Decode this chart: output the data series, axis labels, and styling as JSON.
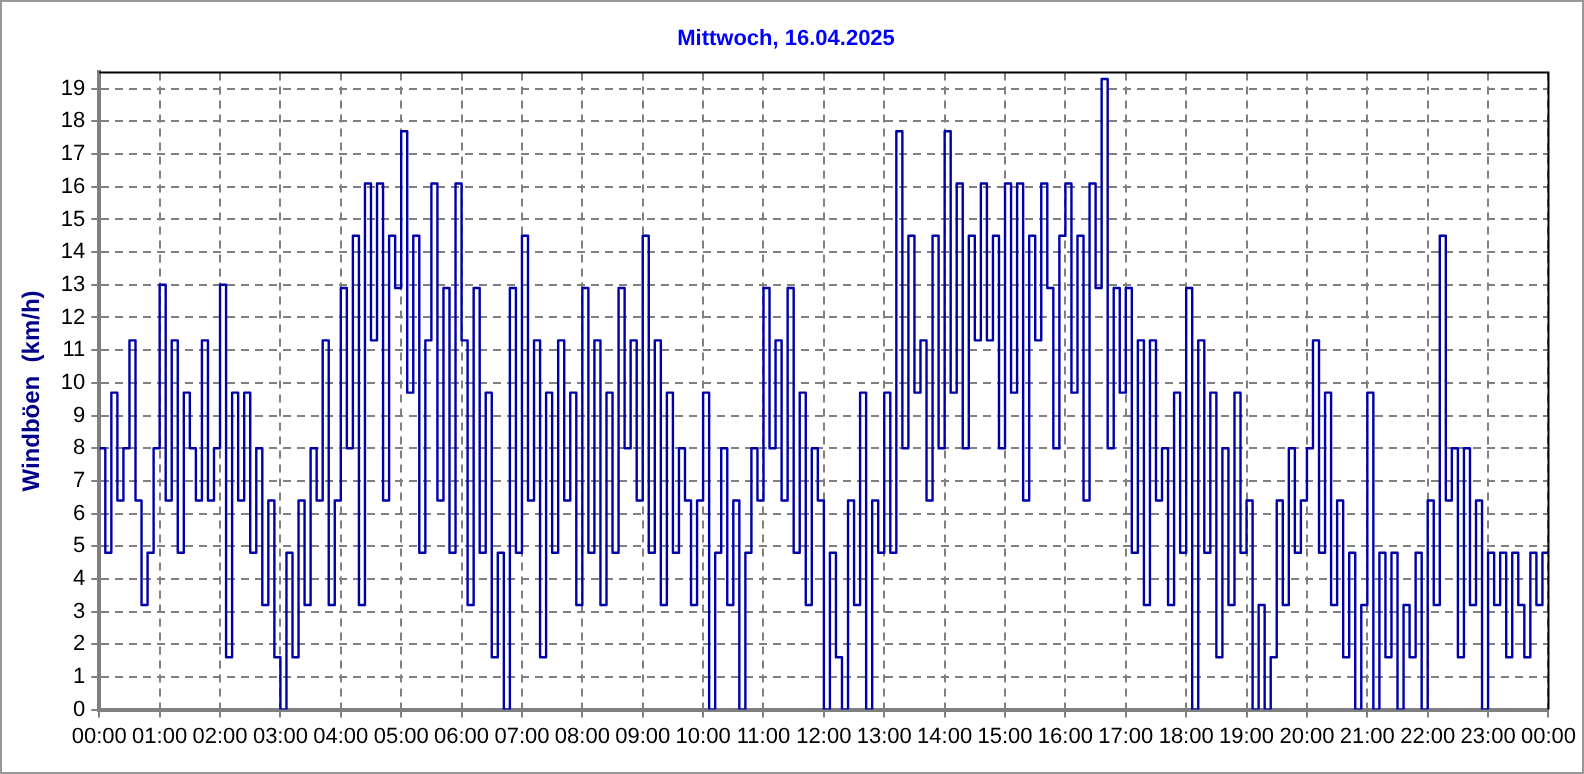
{
  "chart_data": {
    "type": "step",
    "title": "Mittwoch, 16.04.2025",
    "ylabel": "Windböen  (km/h)",
    "x": [
      0,
      0.1,
      0.2,
      0.3,
      0.4,
      0.5,
      0.6,
      0.7,
      0.8,
      0.9,
      1,
      1.1,
      1.2,
      1.3,
      1.4,
      1.5,
      1.6,
      1.7,
      1.8,
      1.9,
      2,
      2.1,
      2.2,
      2.3,
      2.4,
      2.5,
      2.6,
      2.7,
      2.8,
      2.9,
      3,
      3.1,
      3.2,
      3.3,
      3.4,
      3.5,
      3.6,
      3.7,
      3.8,
      3.9,
      4,
      4.1,
      4.2,
      4.3,
      4.4,
      4.5,
      4.6,
      4.7,
      4.8,
      4.9,
      5,
      5.1,
      5.2,
      5.3,
      5.4,
      5.5,
      5.6,
      5.7,
      5.8,
      5.9,
      6,
      6.1,
      6.2,
      6.3,
      6.4,
      6.5,
      6.6,
      6.7,
      6.8,
      6.9,
      7,
      7.1,
      7.2,
      7.3,
      7.4,
      7.5,
      7.6,
      7.7,
      7.8,
      7.9,
      8,
      8.1,
      8.2,
      8.3,
      8.4,
      8.5,
      8.6,
      8.7,
      8.8,
      8.9,
      9,
      9.1,
      9.2,
      9.3,
      9.4,
      9.5,
      9.6,
      9.7,
      9.8,
      9.9,
      10,
      10.1,
      10.2,
      10.3,
      10.4,
      10.5,
      10.6,
      10.7,
      10.8,
      10.9,
      11,
      11.1,
      11.2,
      11.3,
      11.4,
      11.5,
      11.6,
      11.7,
      11.8,
      11.9,
      12,
      12.1,
      12.2,
      12.3,
      12.4,
      12.5,
      12.6,
      12.7,
      12.8,
      12.9,
      13,
      13.1,
      13.2,
      13.3,
      13.4,
      13.5,
      13.6,
      13.7,
      13.8,
      13.9,
      14,
      14.1,
      14.2,
      14.3,
      14.4,
      14.5,
      14.6,
      14.7,
      14.8,
      14.9,
      15,
      15.1,
      15.2,
      15.3,
      15.4,
      15.5,
      15.6,
      15.7,
      15.8,
      15.9,
      16,
      16.1,
      16.2,
      16.3,
      16.4,
      16.5,
      16.6,
      16.7,
      16.8,
      16.9,
      17,
      17.1,
      17.2,
      17.3,
      17.4,
      17.5,
      17.6,
      17.7,
      17.8,
      17.9,
      18,
      18.1,
      18.2,
      18.3,
      18.4,
      18.5,
      18.6,
      18.7,
      18.8,
      18.9,
      19,
      19.1,
      19.2,
      19.3,
      19.4,
      19.5,
      19.6,
      19.7,
      19.8,
      19.9,
      20,
      20.1,
      20.2,
      20.3,
      20.4,
      20.5,
      20.6,
      20.7,
      20.8,
      20.9,
      21,
      21.1,
      21.2,
      21.3,
      21.4,
      21.5,
      21.6,
      21.7,
      21.8,
      21.9,
      22,
      22.1,
      22.2,
      22.3,
      22.4,
      22.5,
      22.6,
      22.7,
      22.8,
      22.9,
      23,
      23.1,
      23.2,
      23.3,
      23.4,
      23.5,
      23.6,
      23.7,
      23.8,
      23.9,
      24
    ],
    "series": [
      {
        "color": "#0000aa",
        "values": [
          8,
          4.8,
          9.7,
          6.4,
          8,
          11.3,
          6.4,
          3.2,
          4.8,
          8,
          13,
          6.4,
          11.3,
          4.8,
          9.7,
          8,
          6.4,
          11.3,
          6.4,
          8,
          13,
          1.6,
          9.7,
          6.4,
          9.7,
          4.8,
          8,
          3.2,
          6.4,
          1.6,
          0,
          4.8,
          1.6,
          6.4,
          3.2,
          8,
          6.4,
          11.3,
          3.2,
          6.4,
          12.9,
          8,
          14.5,
          3.2,
          16.1,
          11.3,
          16.1,
          6.4,
          14.5,
          12.9,
          17.7,
          9.7,
          14.5,
          4.8,
          11.3,
          16.1,
          6.4,
          12.9,
          4.8,
          16.1,
          11.3,
          3.2,
          12.9,
          4.8,
          9.7,
          1.6,
          4.8,
          0,
          12.9,
          4.8,
          14.5,
          6.4,
          11.3,
          1.6,
          9.7,
          4.8,
          11.3,
          6.4,
          9.7,
          3.2,
          12.9,
          4.8,
          11.3,
          3.2,
          9.7,
          4.8,
          12.9,
          8,
          11.3,
          6.4,
          14.5,
          4.8,
          11.3,
          3.2,
          9.7,
          4.8,
          8,
          6.4,
          3.2,
          6.4,
          9.7,
          0,
          4.8,
          8,
          3.2,
          6.4,
          0,
          4.8,
          8,
          6.4,
          12.9,
          8,
          11.3,
          6.4,
          12.9,
          4.8,
          9.7,
          3.2,
          8,
          6.4,
          0,
          4.8,
          1.6,
          0,
          6.4,
          3.2,
          9.7,
          0,
          6.4,
          4.8,
          9.7,
          4.8,
          17.7,
          8,
          14.5,
          9.7,
          11.3,
          6.4,
          14.5,
          8,
          17.7,
          9.7,
          16.1,
          8,
          14.5,
          11.3,
          16.1,
          11.3,
          14.5,
          8,
          16.1,
          9.7,
          16.1,
          6.4,
          14.5,
          11.3,
          16.1,
          12.9,
          8,
          14.5,
          16.1,
          9.7,
          14.5,
          6.4,
          16.1,
          12.9,
          19.3,
          8,
          12.9,
          9.7,
          12.9,
          4.8,
          11.3,
          3.2,
          11.3,
          6.4,
          8,
          3.2,
          9.7,
          4.8,
          12.9,
          0,
          11.3,
          4.8,
          9.7,
          1.6,
          8,
          3.2,
          9.7,
          4.8,
          6.4,
          0,
          3.2,
          0,
          1.6,
          6.4,
          3.2,
          8,
          4.8,
          6.4,
          8,
          11.3,
          4.8,
          9.7,
          3.2,
          6.4,
          1.6,
          4.8,
          0,
          3.2,
          9.7,
          0,
          4.8,
          1.6,
          4.8,
          0,
          3.2,
          1.6,
          4.8,
          0,
          6.4,
          3.2,
          14.5,
          6.4,
          8,
          1.6,
          8,
          3.2,
          6.4,
          0,
          4.8,
          3.2,
          4.8,
          1.6,
          4.8,
          3.2,
          1.6,
          4.8,
          3.2,
          4.8,
          4.8
        ]
      }
    ],
    "xlim": [
      0,
      24
    ],
    "xticks": [
      {
        "value": 0,
        "label": "00:00"
      },
      {
        "value": 1,
        "label": "01:00"
      },
      {
        "value": 2,
        "label": "02:00"
      },
      {
        "value": 3,
        "label": "03:00"
      },
      {
        "value": 4,
        "label": "04:00"
      },
      {
        "value": 5,
        "label": "05:00"
      },
      {
        "value": 6,
        "label": "06:00"
      },
      {
        "value": 7,
        "label": "07:00"
      },
      {
        "value": 8,
        "label": "08:00"
      },
      {
        "value": 9,
        "label": "09:00"
      },
      {
        "value": 10,
        "label": "10:00"
      },
      {
        "value": 11,
        "label": "11:00"
      },
      {
        "value": 12,
        "label": "12:00"
      },
      {
        "value": 13,
        "label": "13:00"
      },
      {
        "value": 14,
        "label": "14:00"
      },
      {
        "value": 15,
        "label": "15:00"
      },
      {
        "value": 16,
        "label": "16:00"
      },
      {
        "value": 17,
        "label": "17:00"
      },
      {
        "value": 18,
        "label": "18:00"
      },
      {
        "value": 19,
        "label": "19:00"
      },
      {
        "value": 20,
        "label": "20:00"
      },
      {
        "value": 21,
        "label": "21:00"
      },
      {
        "value": 22,
        "label": "22:00"
      },
      {
        "value": 23,
        "label": "23:00"
      },
      {
        "value": 24,
        "label": "00:00"
      }
    ],
    "ylim": [
      0,
      19.5
    ],
    "yticks": [
      0,
      1,
      2,
      3,
      4,
      5,
      6,
      7,
      8,
      9,
      10,
      11,
      12,
      13,
      14,
      15,
      16,
      17,
      18,
      19
    ],
    "grid": true,
    "marker": "none",
    "line_style": "solid"
  }
}
